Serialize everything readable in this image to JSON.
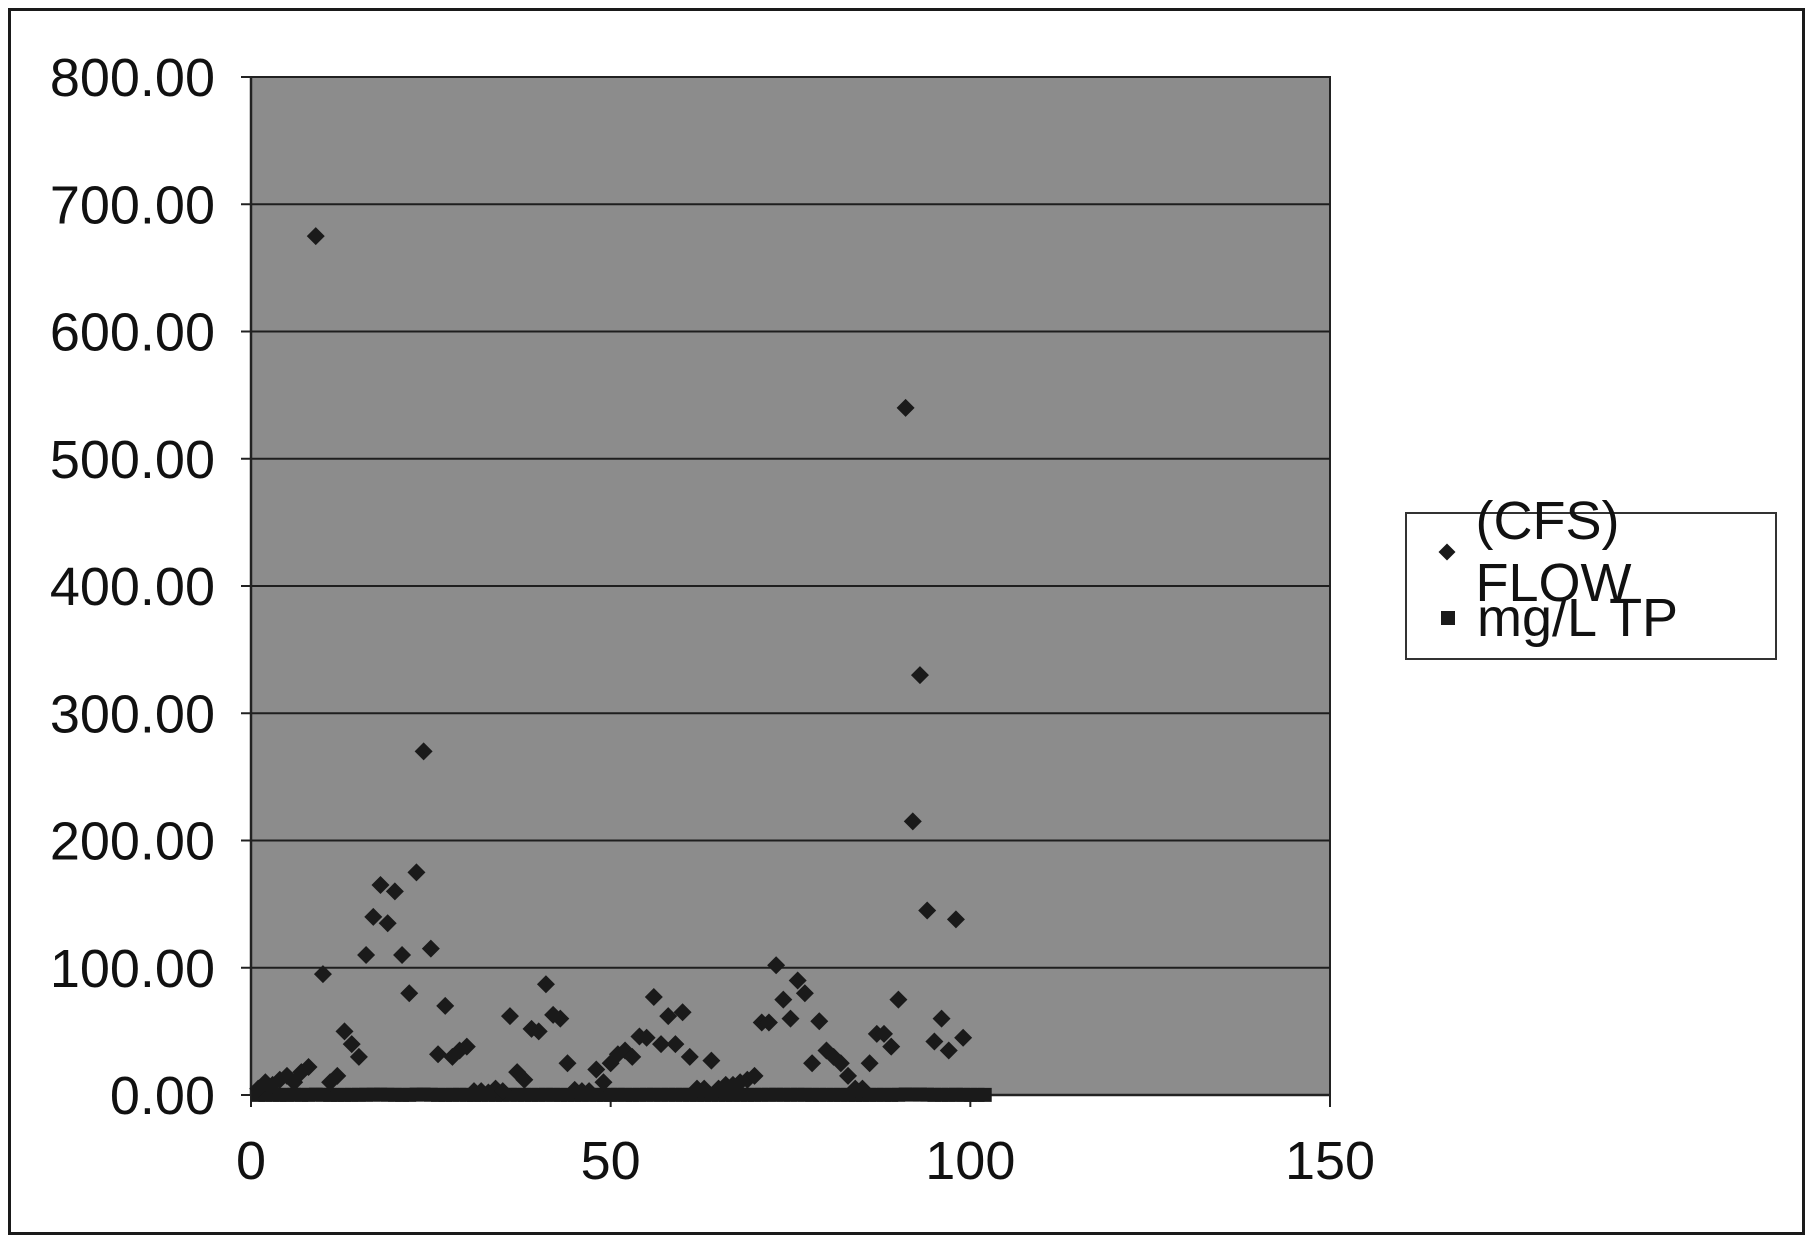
{
  "chart_data": {
    "type": "scatter",
    "title": "",
    "xlabel": "",
    "ylabel": "",
    "xlim": [
      0,
      150
    ],
    "ylim": [
      0,
      800
    ],
    "x_ticks": [
      "0",
      "50",
      "100",
      "150"
    ],
    "y_ticks": [
      "0.00",
      "100.00",
      "200.00",
      "300.00",
      "400.00",
      "500.00",
      "600.00",
      "700.00",
      "800.00"
    ],
    "grid": "horizontal",
    "legend_position": "right",
    "plot_background": "#8c8c8c",
    "series": [
      {
        "name": "(CFS) FLOW",
        "marker": "diamond",
        "color": "#1a1a1a",
        "x": [
          1,
          2,
          3,
          4,
          5,
          6,
          7,
          8,
          9,
          10,
          11,
          12,
          13,
          14,
          15,
          16,
          17,
          18,
          19,
          20,
          21,
          22,
          23,
          24,
          25,
          26,
          27,
          28,
          29,
          30,
          31,
          32,
          33,
          34,
          35,
          36,
          37,
          38,
          39,
          40,
          41,
          42,
          43,
          44,
          45,
          46,
          47,
          48,
          49,
          50,
          51,
          52,
          53,
          54,
          55,
          56,
          57,
          58,
          59,
          60,
          61,
          62,
          63,
          64,
          65,
          66,
          67,
          68,
          69,
          70,
          71,
          72,
          73,
          74,
          75,
          76,
          77,
          78,
          79,
          80,
          81,
          82,
          83,
          84,
          85,
          86,
          87,
          88,
          89,
          90,
          91,
          92,
          93,
          94,
          95,
          96,
          97,
          98,
          99
        ],
        "y": [
          5,
          10,
          8,
          12,
          15,
          10,
          18,
          22,
          675,
          95,
          10,
          15,
          50,
          40,
          30,
          110,
          140,
          165,
          135,
          160,
          110,
          80,
          175,
          270,
          115,
          32,
          70,
          30,
          35,
          38,
          3,
          3,
          2,
          5,
          3,
          62,
          18,
          12,
          52,
          50,
          87,
          63,
          60,
          25,
          4,
          3,
          3,
          20,
          10,
          25,
          32,
          35,
          30,
          46,
          45,
          77,
          40,
          62,
          40,
          65,
          30,
          5,
          5,
          27,
          5,
          8,
          8,
          10,
          12,
          15,
          57,
          57,
          102,
          75,
          60,
          90,
          80,
          25,
          58,
          35,
          30,
          25,
          15,
          5,
          5,
          25,
          48,
          48,
          38,
          75,
          540,
          215,
          330,
          145,
          42,
          60,
          35,
          138,
          45
        ]
      },
      {
        "name": "mg/L TP",
        "marker": "square",
        "color": "#1a1a1a",
        "x": [
          1,
          2,
          3,
          4,
          5,
          6,
          7,
          8,
          9,
          10,
          11,
          12,
          13,
          14,
          15,
          16,
          17,
          18,
          19,
          20,
          21,
          22,
          23,
          24,
          25,
          26,
          27,
          28,
          29,
          30,
          31,
          32,
          33,
          34,
          35,
          36,
          37,
          38,
          39,
          40,
          41,
          42,
          43,
          44,
          45,
          46,
          47,
          48,
          49,
          50,
          51,
          52,
          53,
          54,
          55,
          56,
          57,
          58,
          59,
          60,
          61,
          62,
          63,
          64,
          65,
          66,
          67,
          68,
          69,
          70,
          71,
          72,
          73,
          74,
          75,
          76,
          77,
          78,
          79,
          80,
          81,
          82,
          83,
          84,
          85,
          86,
          87,
          88,
          89,
          90,
          91,
          92,
          93,
          94,
          95,
          96,
          97,
          98,
          99,
          100,
          101,
          102
        ],
        "y": [
          0.1,
          0.12,
          0.15,
          0.1,
          0.08,
          0.2,
          0.1,
          0.12,
          0.3,
          0.15,
          0.1,
          0.08,
          0.1,
          0.12,
          0.15,
          0.2,
          0.25,
          0.3,
          0.2,
          0.15,
          0.1,
          0.12,
          0.3,
          0.35,
          0.2,
          0.1,
          0.1,
          0.12,
          0.15,
          0.1,
          0.08,
          0.1,
          0.12,
          0.1,
          0.1,
          0.15,
          0.1,
          0.12,
          0.1,
          0.1,
          0.15,
          0.12,
          0.1,
          0.08,
          0.1,
          0.1,
          0.12,
          0.1,
          0.1,
          0.12,
          0.15,
          0.12,
          0.1,
          0.12,
          0.15,
          0.15,
          0.12,
          0.15,
          0.12,
          0.15,
          0.1,
          0.1,
          0.1,
          0.12,
          0.1,
          0.1,
          0.1,
          0.12,
          0.1,
          0.12,
          0.15,
          0.15,
          0.2,
          0.15,
          0.15,
          0.18,
          0.15,
          0.1,
          0.12,
          0.1,
          0.1,
          0.1,
          0.1,
          0.08,
          0.08,
          0.1,
          0.12,
          0.12,
          0.1,
          0.15,
          0.4,
          0.3,
          0.35,
          0.25,
          0.12,
          0.15,
          0.1,
          0.2,
          0.12,
          0.1,
          0.1,
          0.1
        ]
      }
    ]
  }
}
